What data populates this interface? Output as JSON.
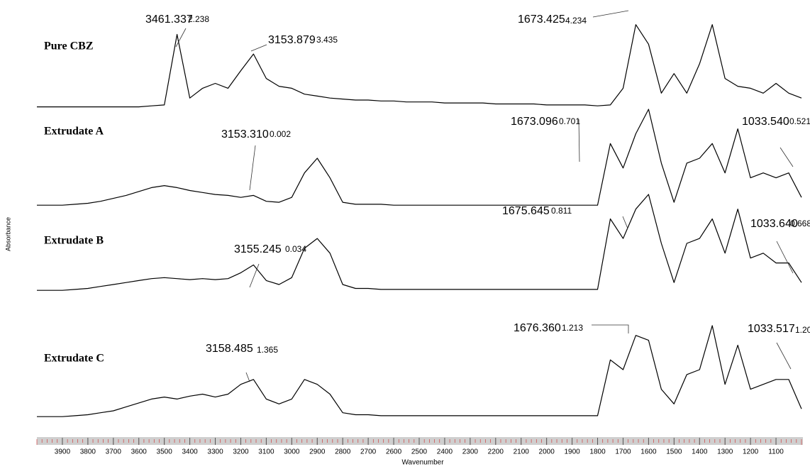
{
  "chart_data": {
    "type": "line",
    "xlabel": "Wavenumber",
    "ylabel": "Absorbance",
    "xlim": [
      4000,
      1000
    ],
    "xticks": [
      3900,
      3800,
      3700,
      3600,
      3500,
      3400,
      3300,
      3200,
      3100,
      3000,
      2900,
      2800,
      2700,
      2600,
      2500,
      2400,
      2300,
      2200,
      2100,
      2000,
      1900,
      1800,
      1700,
      1600,
      1500,
      1400,
      1300,
      1200,
      1100
    ],
    "x": [
      4000,
      3950,
      3900,
      3850,
      3800,
      3750,
      3700,
      3650,
      3600,
      3550,
      3500,
      3450,
      3400,
      3350,
      3300,
      3250,
      3200,
      3150,
      3100,
      3050,
      3000,
      2950,
      2900,
      2850,
      2800,
      2750,
      2700,
      2650,
      2600,
      2550,
      2500,
      2450,
      2400,
      2350,
      2300,
      2250,
      2200,
      2150,
      2100,
      2050,
      2000,
      1950,
      1900,
      1850,
      1800,
      1750,
      1700,
      1650,
      1600,
      1550,
      1500,
      1450,
      1400,
      1350,
      1300,
      1250,
      1200,
      1150,
      1100,
      1050,
      1000
    ],
    "series": [
      {
        "name": "Pure CBZ",
        "color": "#000000",
        "values": [
          0.01,
          0.01,
          0.01,
          0.01,
          0.01,
          0.01,
          0.01,
          0.01,
          0.01,
          0.02,
          0.03,
          0.75,
          0.1,
          0.2,
          0.25,
          0.2,
          0.38,
          0.55,
          0.3,
          0.22,
          0.2,
          0.14,
          0.12,
          0.1,
          0.09,
          0.08,
          0.08,
          0.07,
          0.07,
          0.06,
          0.06,
          0.06,
          0.05,
          0.05,
          0.05,
          0.05,
          0.04,
          0.04,
          0.04,
          0.04,
          0.03,
          0.03,
          0.03,
          0.03,
          0.02,
          0.03,
          0.2,
          0.85,
          0.65,
          0.15,
          0.35,
          0.15,
          0.45,
          0.85,
          0.3,
          0.22,
          0.2,
          0.15,
          0.25,
          0.15,
          0.1
        ],
        "annotations": [
          {
            "text": "3461.337",
            "value": "2.238"
          },
          {
            "text": "3153.879",
            "value": "3.435"
          },
          {
            "text": "1673.425",
            "value": "4.234"
          }
        ]
      },
      {
        "name": "Extrudate A",
        "color": "#000000",
        "values": [
          0.02,
          0.02,
          0.02,
          0.03,
          0.04,
          0.06,
          0.09,
          0.12,
          0.16,
          0.2,
          0.22,
          0.2,
          0.17,
          0.15,
          0.13,
          0.12,
          0.1,
          0.12,
          0.06,
          0.05,
          0.1,
          0.35,
          0.5,
          0.3,
          0.05,
          0.03,
          0.03,
          0.03,
          0.02,
          0.02,
          0.02,
          0.02,
          0.02,
          0.02,
          0.02,
          0.02,
          0.02,
          0.02,
          0.02,
          0.02,
          0.02,
          0.02,
          0.02,
          0.02,
          0.02,
          0.65,
          0.4,
          0.75,
          1.0,
          0.45,
          0.05,
          0.45,
          0.5,
          0.65,
          0.35,
          0.8,
          0.3,
          0.35,
          0.3,
          0.35,
          0.1
        ],
        "annotations": [
          {
            "text": "3153.310",
            "value": "0.002"
          },
          {
            "text": "1673.096",
            "value": "0.701"
          },
          {
            "text": "1033.540",
            "value": "0.521"
          }
        ]
      },
      {
        "name": "Extrudate B",
        "color": "#000000",
        "values": [
          0.02,
          0.02,
          0.02,
          0.03,
          0.04,
          0.06,
          0.08,
          0.1,
          0.12,
          0.14,
          0.15,
          0.14,
          0.13,
          0.14,
          0.13,
          0.14,
          0.2,
          0.28,
          0.12,
          0.08,
          0.15,
          0.45,
          0.55,
          0.4,
          0.08,
          0.04,
          0.04,
          0.03,
          0.03,
          0.03,
          0.03,
          0.03,
          0.03,
          0.03,
          0.03,
          0.03,
          0.03,
          0.03,
          0.03,
          0.03,
          0.03,
          0.03,
          0.03,
          0.03,
          0.03,
          0.75,
          0.55,
          0.85,
          1.0,
          0.5,
          0.1,
          0.5,
          0.55,
          0.75,
          0.4,
          0.85,
          0.35,
          0.4,
          0.3,
          0.3,
          0.1
        ],
        "annotations": [
          {
            "text": "3155.245",
            "value": "0.034"
          },
          {
            "text": "1675.645",
            "value": "0.811"
          },
          {
            "text": "1033.640",
            "value": "0.668"
          }
        ]
      },
      {
        "name": "Extrudate C",
        "color": "#000000",
        "values": [
          0.02,
          0.02,
          0.02,
          0.03,
          0.04,
          0.06,
          0.08,
          0.12,
          0.16,
          0.2,
          0.22,
          0.2,
          0.23,
          0.25,
          0.22,
          0.25,
          0.35,
          0.4,
          0.2,
          0.15,
          0.2,
          0.4,
          0.35,
          0.25,
          0.06,
          0.04,
          0.04,
          0.03,
          0.03,
          0.03,
          0.03,
          0.03,
          0.03,
          0.03,
          0.03,
          0.03,
          0.03,
          0.03,
          0.03,
          0.03,
          0.03,
          0.03,
          0.03,
          0.03,
          0.03,
          0.6,
          0.5,
          0.85,
          0.8,
          0.3,
          0.15,
          0.45,
          0.5,
          0.95,
          0.35,
          0.75,
          0.3,
          0.35,
          0.4,
          0.4,
          0.1
        ],
        "annotations": [
          {
            "text": "3158.485",
            "value": "1.365"
          },
          {
            "text": "1676.360",
            "value": "1.213"
          },
          {
            "text": "1033.517",
            "value": "1.20"
          }
        ]
      }
    ]
  }
}
